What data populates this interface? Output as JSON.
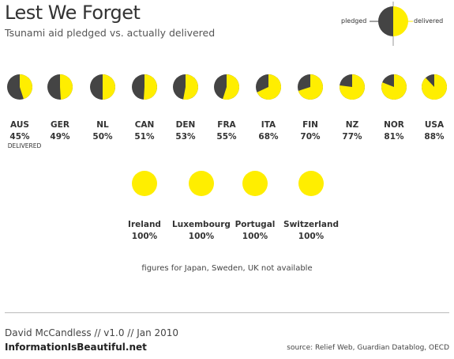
{
  "header": {
    "title": "Lest We Forget",
    "subtitle": "Tsunami aid pledged vs. actually delivered"
  },
  "legend": {
    "pledged_label": "pledged",
    "delivered_label": "delivered"
  },
  "chart_data": {
    "type": "pie",
    "title": "Lest We Forget",
    "subtitle": "Tsunami aid pledged vs. actually delivered",
    "pledged_color": "#444444",
    "delivered_color": "#FFEE00",
    "delivered_note": "DELIVERED",
    "rows": [
      {
        "countries": [
          {
            "name": "AUS",
            "percent_label": "45%",
            "delivered": 45
          },
          {
            "name": "GER",
            "percent_label": "49%",
            "delivered": 49
          },
          {
            "name": "NL",
            "percent_label": "50%",
            "delivered": 50
          },
          {
            "name": "CAN",
            "percent_label": "51%",
            "delivered": 51
          },
          {
            "name": "DEN",
            "percent_label": "53%",
            "delivered": 53
          },
          {
            "name": "FRA",
            "percent_label": "55%",
            "delivered": 55
          },
          {
            "name": "ITA",
            "percent_label": "68%",
            "delivered": 68
          },
          {
            "name": "FIN",
            "percent_label": "70%",
            "delivered": 70
          },
          {
            "name": "NZ",
            "percent_label": "77%",
            "delivered": 77
          },
          {
            "name": "NOR",
            "percent_label": "81%",
            "delivered": 81
          },
          {
            "name": "USA",
            "percent_label": "88%",
            "delivered": 88
          }
        ]
      },
      {
        "countries": [
          {
            "name": "Ireland",
            "percent_label": "100%",
            "delivered": 100
          },
          {
            "name": "Luxembourg",
            "percent_label": "100%",
            "delivered": 100
          },
          {
            "name": "Portugal",
            "percent_label": "100%",
            "delivered": 100
          },
          {
            "name": "Switzerland",
            "percent_label": "100%",
            "delivered": 100
          }
        ]
      }
    ]
  },
  "footnote": "figures for Japan, Sweden, UK not available",
  "footer": {
    "credit": "David McCandless // v1.0 // Jan 2010",
    "site": "InformationIsBeautiful.net",
    "source": "source: Relief Web, Guardian Datablog, OECD"
  }
}
